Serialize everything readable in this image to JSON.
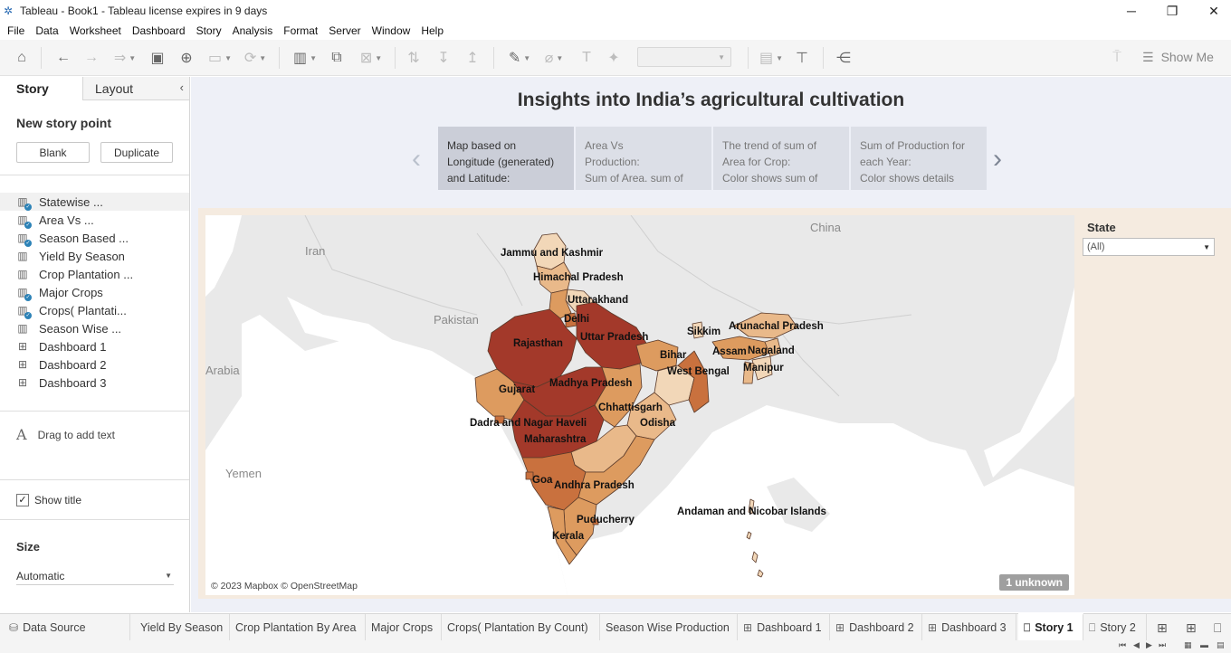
{
  "window": {
    "title": "Tableau - Book1 - Tableau license expires in 9 days"
  },
  "menu": [
    "File",
    "Data",
    "Worksheet",
    "Dashboard",
    "Story",
    "Analysis",
    "Format",
    "Server",
    "Window",
    "Help"
  ],
  "toolbar": {
    "show_me_label": "Show Me"
  },
  "left_pane": {
    "tab_story": "Story",
    "tab_layout": "Layout",
    "new_story_point": "New story point",
    "blank_button": "Blank",
    "duplicate_button": "Duplicate",
    "sheets": [
      {
        "label": "Statewise ...",
        "type": "worksheet"
      },
      {
        "label": "Area Vs ...",
        "type": "worksheet"
      },
      {
        "label": "Season Based ...",
        "type": "worksheet"
      },
      {
        "label": "Yield By Season",
        "type": "worksheet"
      },
      {
        "label": "Crop Plantation ...",
        "type": "worksheet"
      },
      {
        "label": "Major Crops",
        "type": "worksheet"
      },
      {
        "label": "Crops( Plantati...",
        "type": "worksheet"
      },
      {
        "label": "Season Wise ...",
        "type": "worksheet"
      },
      {
        "label": "Dashboard 1",
        "type": "dashboard"
      },
      {
        "label": "Dashboard 2",
        "type": "dashboard"
      },
      {
        "label": "Dashboard 3",
        "type": "dashboard"
      }
    ],
    "drag_text": "Drag to add text",
    "show_title_label": "Show title",
    "show_title_checked": true,
    "size_title": "Size",
    "size_value": "Automatic"
  },
  "story": {
    "title": "Insights into India’s agricultural cultivation",
    "points": [
      {
        "lines": [
          "Map based on",
          "Longitude (generated)",
          "and Latitude:"
        ],
        "active": true
      },
      {
        "lines": [
          "Area Vs",
          "Production:",
          "Sum of Area.  sum of"
        ],
        "active": false
      },
      {
        "lines": [
          "The trend of sum of",
          "Area for Crop:",
          "Color shows sum of"
        ],
        "active": false
      },
      {
        "lines": [
          "Sum of Production for",
          "each Year:",
          "Color shows details"
        ],
        "active": false
      }
    ],
    "filter_title": "State",
    "filter_value": "(All)"
  },
  "map": {
    "attribution": "© 2023 Mapbox © OpenStreetMap",
    "unknown_badge": "1 unknown",
    "geo_labels": [
      "China",
      "Iran",
      "Pakistan",
      "Arabia",
      "Yemen"
    ],
    "state_labels": [
      "Jammu and Kashmir",
      "Himachal Pradesh",
      "Uttarakhand",
      "Delhi",
      "Rajasthan",
      "Uttar Pradesh",
      "Sikkim",
      "Arunachal Pradesh",
      "Assam",
      "Nagaland",
      "Bihar",
      "Manipur",
      "West Bengal",
      "Gujarat",
      "Madhya Pradesh",
      "Chhattisgarh",
      "Dadra and Nagar Haveli",
      "Odisha",
      "Maharashtra",
      "Goa",
      "Andhra Pradesh",
      "Andaman and Nicobar Islands",
      "Puducherry",
      "Kerala"
    ],
    "colors": {
      "darkest": "#a3392a",
      "dark": "#c9713e",
      "mid": "#dd9b5f",
      "light": "#e9b98a",
      "lightest": "#f2d7b8"
    }
  },
  "bottom_tabs": [
    {
      "label": "Data Source",
      "icon": "database-icon"
    },
    {
      "label": "Yield By Season",
      "icon": ""
    },
    {
      "label": "Crop Plantation By Area",
      "icon": ""
    },
    {
      "label": "Major Crops",
      "icon": ""
    },
    {
      "label": "Crops( Plantation By Count)",
      "icon": ""
    },
    {
      "label": "Season Wise Production",
      "icon": ""
    },
    {
      "label": "Dashboard 1",
      "icon": "dashboard-icon"
    },
    {
      "label": "Dashboard 2",
      "icon": "dashboard-icon"
    },
    {
      "label": "Dashboard 3",
      "icon": "dashboard-icon"
    },
    {
      "label": "Story 1",
      "icon": "story-icon",
      "active": true
    },
    {
      "label": "Story 2",
      "icon": "story-icon"
    }
  ]
}
